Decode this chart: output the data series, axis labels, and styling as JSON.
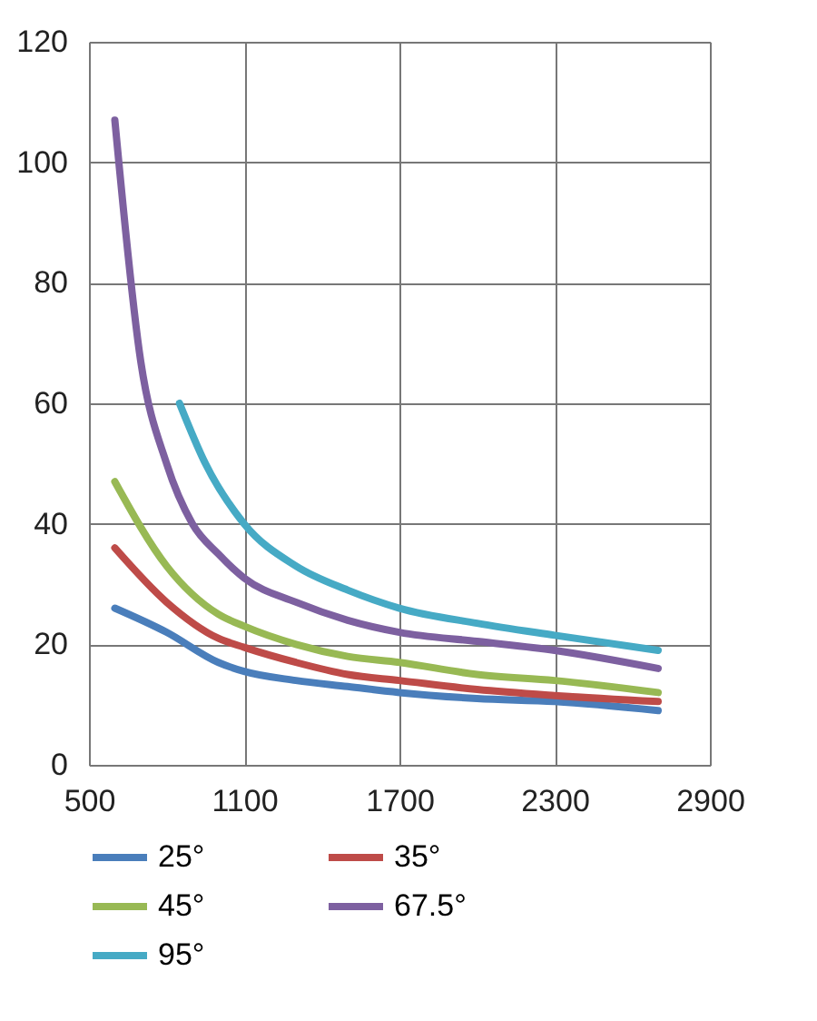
{
  "chart_data": {
    "type": "line",
    "xlim": [
      500,
      2900
    ],
    "xticks": [
      500,
      1100,
      1700,
      2300,
      2900
    ],
    "ylim": [
      0,
      120
    ],
    "yticks": [
      0,
      20,
      40,
      60,
      80,
      100,
      120
    ],
    "grid": true,
    "legend": "bottom",
    "marker": "none",
    "line_style": "solid",
    "series": [
      {
        "name": "25°",
        "color": "#4a7ebb",
        "x": [
          600,
          800,
          1000,
          1100,
          1300,
          1500,
          1700,
          2000,
          2300,
          2700
        ],
        "values": [
          26,
          22,
          17,
          15.5,
          14,
          13,
          12,
          11,
          10.5,
          9
        ]
      },
      {
        "name": "35°",
        "color": "#be4b48",
        "x": [
          600,
          800,
          1000,
          1100,
          1300,
          1500,
          1700,
          2000,
          2300,
          2700
        ],
        "values": [
          36,
          27,
          21,
          19.5,
          17,
          15,
          14,
          12.5,
          11.5,
          10.5
        ]
      },
      {
        "name": "45°",
        "color": "#98b954",
        "x": [
          600,
          800,
          1000,
          1100,
          1300,
          1500,
          1700,
          2000,
          2300,
          2700
        ],
        "values": [
          47,
          33,
          25,
          23,
          20,
          18,
          17,
          15,
          14,
          12
        ]
      },
      {
        "name": "67.5°",
        "color": "#7d60a0",
        "x": [
          600,
          700,
          800,
          900,
          1000,
          1100,
          1300,
          1500,
          1700,
          2000,
          2300,
          2700
        ],
        "values": [
          107,
          67,
          50,
          40,
          35,
          31,
          27,
          24,
          22,
          20.5,
          19,
          16
        ]
      },
      {
        "name": "95°",
        "color": "#46aac5",
        "x": [
          850,
          950,
          1100,
          1300,
          1500,
          1700,
          2000,
          2300,
          2700
        ],
        "values": [
          60,
          50,
          40,
          33,
          29,
          26,
          23.5,
          21.5,
          19
        ]
      }
    ]
  }
}
